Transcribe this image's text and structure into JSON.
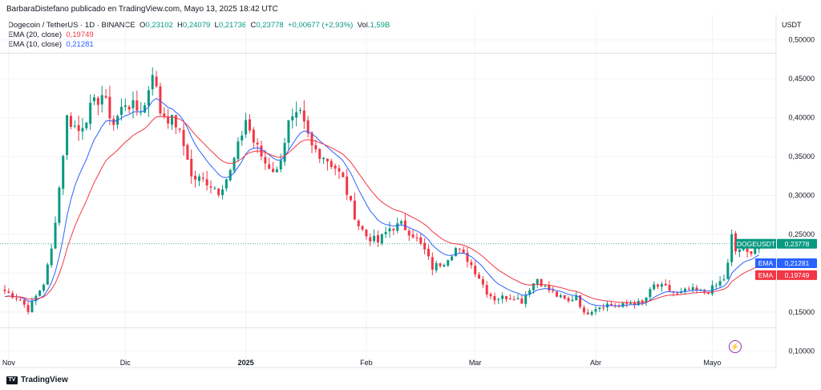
{
  "header": {
    "text": "BarbaraDistefano publicado en TradingView.com, Mayo 13, 2025 18:42 UTC"
  },
  "legend": {
    "symbol": "Dogecoin / TetherUS · 1D · BINANCE",
    "open_label": "O",
    "open": "0,23102",
    "high_label": "H",
    "high": "0,24079",
    "low_label": "L",
    "low": "0,21736",
    "close_label": "C",
    "close": "0,23778",
    "change": "+0,00677 (+2,93%)",
    "vol_label": "Vol.",
    "vol": "1,59B",
    "ema20_label": "EMA (20, close)",
    "ema20_value": "0,19749",
    "ema10_label": "EMA (10, close)",
    "ema10_value": "0,21281"
  },
  "unit": "USDT",
  "footer": {
    "brand": "TradingView"
  },
  "colors": {
    "up": "#089981",
    "down": "#f23645",
    "ema10": "#2962ff",
    "ema20": "#f23645",
    "grid": "#f0f3fa"
  },
  "chart_data": {
    "type": "candlestick",
    "title": "Dogecoin / TetherUS · 1D · BINANCE",
    "ylabel": "USDT",
    "ylim": [
      0.09,
      0.51
    ],
    "yticks": [
      "0,50000",
      "0,45000",
      "0,40000",
      "0,35000",
      "0,30000",
      "0,25000",
      "0,20000",
      "0,15000",
      "0,10000"
    ],
    "ytick_values": [
      0.5,
      0.45,
      0.4,
      0.35,
      0.3,
      0.25,
      0.2,
      0.15,
      0.1
    ],
    "xticks": [
      "Nov",
      "Dic",
      "2025",
      "Feb",
      "Mar",
      "Abr",
      "Mayo"
    ],
    "xtick_days": [
      0,
      30,
      61,
      92,
      120,
      151,
      181
    ],
    "day_range": [
      -1,
      197
    ],
    "last_day": 193,
    "anchors": [
      [
        -1,
        0.177
      ],
      [
        3,
        0.166
      ],
      [
        5,
        0.153
      ],
      [
        9,
        0.187
      ],
      [
        11,
        0.23
      ],
      [
        13,
        0.31
      ],
      [
        15,
        0.4
      ],
      [
        18,
        0.383
      ],
      [
        21,
        0.411
      ],
      [
        24,
        0.43
      ],
      [
        27,
        0.392
      ],
      [
        30,
        0.42
      ],
      [
        33,
        0.41
      ],
      [
        35,
        0.415
      ],
      [
        37,
        0.462
      ],
      [
        39,
        0.408
      ],
      [
        43,
        0.392
      ],
      [
        46,
        0.35
      ],
      [
        47,
        0.323
      ],
      [
        51,
        0.318
      ],
      [
        54,
        0.306
      ],
      [
        57,
        0.33
      ],
      [
        59,
        0.362
      ],
      [
        61,
        0.398
      ],
      [
        63,
        0.369
      ],
      [
        66,
        0.342
      ],
      [
        69,
        0.33
      ],
      [
        72,
        0.392
      ],
      [
        75,
        0.402
      ],
      [
        78,
        0.362
      ],
      [
        81,
        0.351
      ],
      [
        84,
        0.336
      ],
      [
        86,
        0.32
      ],
      [
        88,
        0.288
      ],
      [
        90,
        0.262
      ],
      [
        92,
        0.248
      ],
      [
        95,
        0.24
      ],
      [
        98,
        0.258
      ],
      [
        101,
        0.262
      ],
      [
        104,
        0.25
      ],
      [
        107,
        0.229
      ],
      [
        109,
        0.207
      ],
      [
        112,
        0.215
      ],
      [
        115,
        0.232
      ],
      [
        118,
        0.218
      ],
      [
        121,
        0.195
      ],
      [
        123,
        0.176
      ],
      [
        125,
        0.167
      ],
      [
        127,
        0.169
      ],
      [
        130,
        0.17
      ],
      [
        132,
        0.164
      ],
      [
        134,
        0.181
      ],
      [
        136,
        0.193
      ],
      [
        138,
        0.182
      ],
      [
        141,
        0.171
      ],
      [
        144,
        0.163
      ],
      [
        146,
        0.172
      ],
      [
        148,
        0.147
      ],
      [
        151,
        0.156
      ],
      [
        154,
        0.16
      ],
      [
        157,
        0.157
      ],
      [
        160,
        0.162
      ],
      [
        163,
        0.161
      ],
      [
        166,
        0.184
      ],
      [
        169,
        0.181
      ],
      [
        172,
        0.172
      ],
      [
        175,
        0.179
      ],
      [
        178,
        0.176
      ],
      [
        180,
        0.177
      ],
      [
        182,
        0.184
      ],
      [
        184,
        0.193
      ],
      [
        185,
        0.211
      ],
      [
        186,
        0.247
      ],
      [
        187,
        0.228
      ],
      [
        188,
        0.231
      ],
      [
        190,
        0.225
      ],
      [
        193,
        0.2378
      ]
    ],
    "reference_lines": {
      "high": 0.483,
      "low": 0.13
    },
    "price_labels": [
      {
        "name": "DOGEUSDT",
        "value": "0,23778",
        "numeric": 0.2378
      },
      {
        "name": "EMA",
        "value": "0,21281",
        "numeric": 0.2128
      },
      {
        "name": "EMA",
        "value": "0,19749",
        "numeric": 0.1975
      }
    ],
    "series": [
      {
        "name": "EMA (10, close)",
        "period": 10
      },
      {
        "name": "EMA (20, close)",
        "period": 20
      }
    ]
  }
}
